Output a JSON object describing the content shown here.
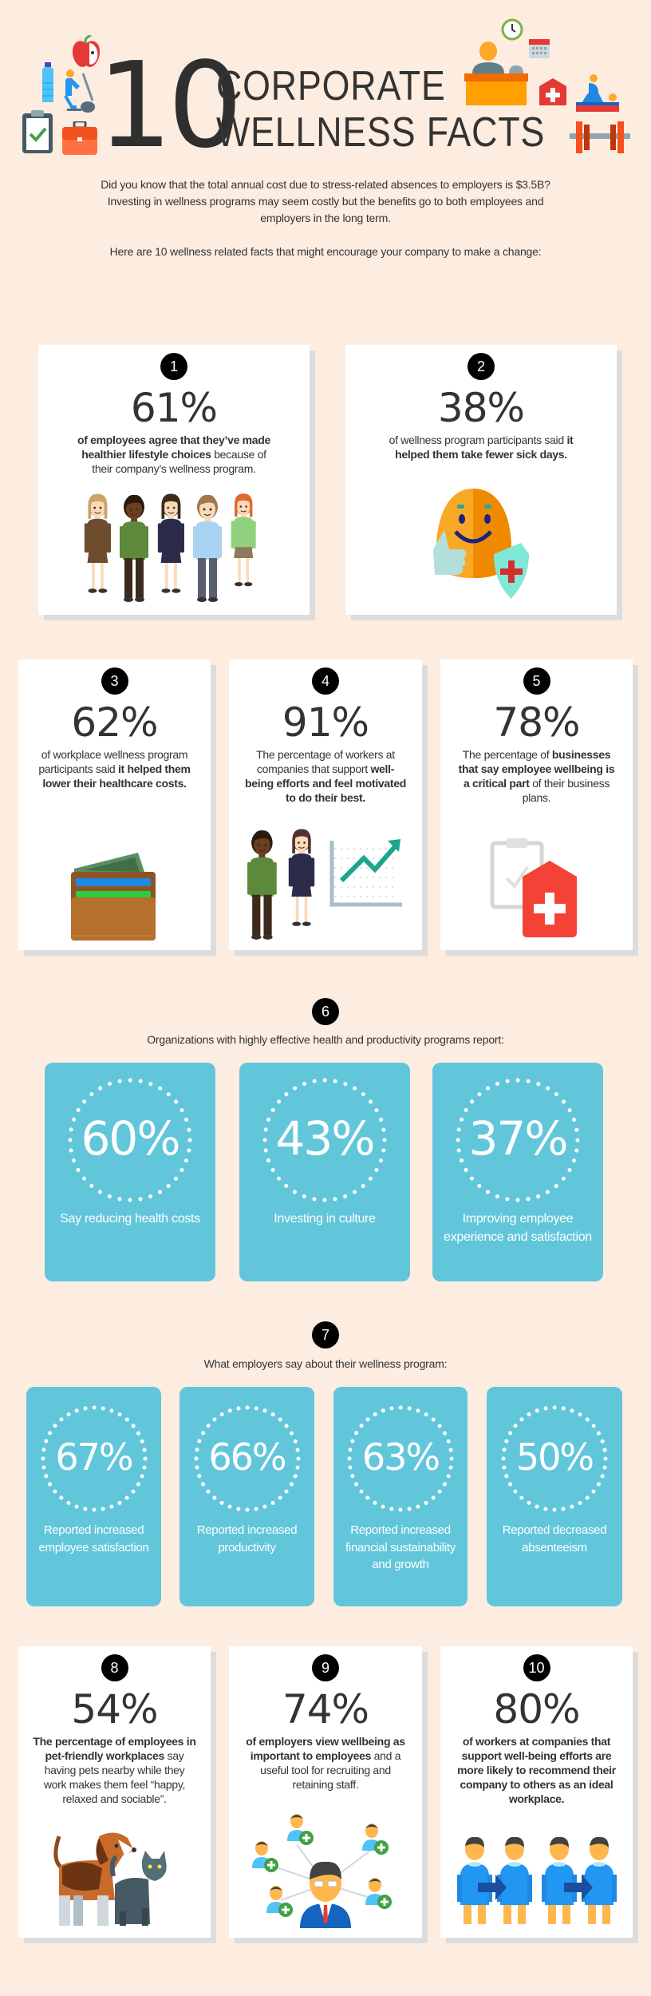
{
  "header": {
    "big_number": "10",
    "title_line1": "CORPORATE",
    "title_line2": "WELLNESS FACTS",
    "intro_lines": [
      "Did you know that the total annual cost due to stress-related absences to employers is $3.5B?",
      "Investing in wellness programs may seem costly but the benefits go to both employees and",
      "employers in the long term."
    ],
    "lead": "Here are 10 wellness related facts that might encourage your company to make a change:",
    "icons": [
      "apple-icon",
      "water-bottle-icon",
      "exercise-bike-icon",
      "clipboard-check-icon",
      "briefcase-icon",
      "clock-icon",
      "calendar-icon",
      "reception-desk-icon",
      "first-aid-kit-icon",
      "massage-icon",
      "dumbbell-icon"
    ]
  },
  "colors": {
    "background": "#fdece0",
    "card_blue": "#62c6db",
    "badge": "#000000",
    "text": "#333333"
  },
  "facts": [
    {
      "badge": "1",
      "value": "61%",
      "illustration": "group-of-people-illustration",
      "text": [
        {
          "t": "of employees agree that they’ve made healthier lifestyle choices",
          "b": true
        },
        {
          "t": " because of their company’s wellness program.",
          "b": false
        }
      ]
    },
    {
      "badge": "2",
      "value": "38%",
      "illustration": "healthy-thumbs-up-shield-illustration",
      "text": [
        {
          "t": "of wellness program participants said ",
          "b": false
        },
        {
          "t": "it helped them take fewer sick days.",
          "b": true
        }
      ]
    },
    {
      "badge": "3",
      "value": "62%",
      "illustration": "wallet-illustration",
      "text": [
        {
          "t": "of workplace wellness program participants said ",
          "b": false
        },
        {
          "t": "it helped them lower their healthcare costs.",
          "b": true
        }
      ]
    },
    {
      "badge": "4",
      "value": "91%",
      "illustration": "workers-growth-chart-illustration",
      "text": [
        {
          "t": "The percentage of workers at companies that support ",
          "b": false
        },
        {
          "t": "well-being efforts and feel motivated to do their best.",
          "b": true
        }
      ]
    },
    {
      "badge": "5",
      "value": "78%",
      "illustration": "clipboard-first-aid-illustration",
      "text": [
        {
          "t": "The percentage of ",
          "b": false
        },
        {
          "t": "businesses that say employee wellbeing is a critical part",
          "b": true
        },
        {
          "t": " of their business plans.",
          "b": false
        }
      ]
    },
    {
      "badge": "8",
      "value": "54%",
      "illustration": "dog-and-cat-illustration",
      "text": [
        {
          "t": "The percentage of employees in pet-friendly workplaces",
          "b": true
        },
        {
          "t": " say having pets nearby while they work makes them feel “happy, relaxed and sociable”.",
          "b": false
        }
      ]
    },
    {
      "badge": "9",
      "value": "74%",
      "illustration": "recruiting-network-illustration",
      "text": [
        {
          "t": "of employers view wellbeing as important to employees",
          "b": true
        },
        {
          "t": " and a useful tool for recruiting and retaining staff.",
          "b": false
        }
      ]
    },
    {
      "badge": "10",
      "value": "80%",
      "illustration": "recommend-workers-illustration",
      "text": [
        {
          "t": "of workers at companies that support well-being efforts are more likely to recommend their company to others as an ideal workplace.",
          "b": true
        }
      ]
    }
  ],
  "section6": {
    "badge": "6",
    "intro": "Organizations with highly effective health and productivity programs report:",
    "stats": [
      {
        "value": "60%",
        "label": "Say reducing health costs"
      },
      {
        "value": "43%",
        "label": "Investing in culture"
      },
      {
        "value": "37%",
        "label": "Improving employee experience and satisfaction"
      }
    ]
  },
  "section7": {
    "badge": "7",
    "intro": "What employers say about their wellness program:",
    "stats": [
      {
        "value": "67%",
        "label": "Reported increased employee satisfaction"
      },
      {
        "value": "66%",
        "label": "Reported increased productivity"
      },
      {
        "value": "63%",
        "label": "Reported increased financial sustainability and growth"
      },
      {
        "value": "50%",
        "label": "Reported decreased absenteeism"
      }
    ]
  }
}
